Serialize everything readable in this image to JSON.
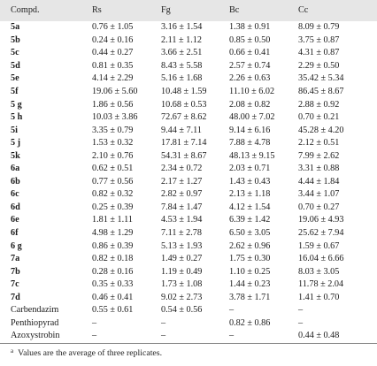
{
  "table": {
    "headers": [
      "Compd.",
      "Rs",
      "Fg",
      "Bc",
      "Cc"
    ],
    "rows": [
      {
        "compound": "5a",
        "bold": true,
        "values": [
          "0.76 ± 1.05",
          "3.16 ± 1.54",
          "1.38 ± 0.91",
          "8.09 ± 0.79"
        ]
      },
      {
        "compound": "5b",
        "bold": true,
        "values": [
          "0.24 ± 0.16",
          "2.11 ± 1.12",
          "0.85 ± 0.50",
          "3.75 ± 0.87"
        ]
      },
      {
        "compound": "5c",
        "bold": true,
        "values": [
          "0.44 ± 0.27",
          "3.66 ± 2.51",
          "0.66 ± 0.41",
          "4.31 ± 0.87"
        ]
      },
      {
        "compound": "5d",
        "bold": true,
        "values": [
          "0.81 ± 0.35",
          "8.43 ± 5.58",
          "2.57 ± 0.74",
          "2.29 ± 0.50"
        ]
      },
      {
        "compound": "5e",
        "bold": true,
        "values": [
          "4.14 ± 2.29",
          "5.16 ± 1.68",
          "2.26 ± 0.63",
          "35.42 ± 5.34"
        ]
      },
      {
        "compound": "5f",
        "bold": true,
        "values": [
          "19.06 ± 5.60",
          "10.48 ± 1.59",
          "11.10 ± 6.02",
          "86.45 ± 8.67"
        ]
      },
      {
        "compound": "5 g",
        "bold": true,
        "values": [
          "1.86 ± 0.56",
          "10.68 ± 0.53",
          "2.08 ± 0.82",
          "2.88 ± 0.92"
        ]
      },
      {
        "compound": "5 h",
        "bold": true,
        "values": [
          "10.03 ± 3.86",
          "72.67 ± 8.62",
          "48.00 ± 7.02",
          "0.70 ± 0.21"
        ]
      },
      {
        "compound": "5i",
        "bold": true,
        "values": [
          "3.35 ± 0.79",
          "9.44 ± 7.11",
          "9.14 ± 6.16",
          "45.28 ± 4.20"
        ]
      },
      {
        "compound": "5 j",
        "bold": true,
        "values": [
          "1.53 ± 0.32",
          "17.81 ± 7.14",
          "7.88 ± 4.78",
          "2.12 ± 0.51"
        ]
      },
      {
        "compound": "5k",
        "bold": true,
        "values": [
          "2.10 ± 0.76",
          "54.31 ± 8.67",
          "48.13 ± 9.15",
          "7.99 ± 2.62"
        ]
      },
      {
        "compound": "6a",
        "bold": true,
        "values": [
          "0.62 ± 0.51",
          "2.34 ± 0.72",
          "2.03 ± 0.71",
          "3.31 ± 0.88"
        ]
      },
      {
        "compound": "6b",
        "bold": true,
        "values": [
          "0.77 ± 0.56",
          "2.17 ± 1.27",
          "1.43 ± 0.43",
          "4.44 ± 1.84"
        ]
      },
      {
        "compound": "6c",
        "bold": true,
        "values": [
          "0.82 ± 0.32",
          "2.82 ± 0.97",
          "2.13 ± 1.18",
          "3.44 ± 1.07"
        ]
      },
      {
        "compound": "6d",
        "bold": true,
        "values": [
          "0.25 ± 0.39",
          "7.84 ± 1.47",
          "4.12 ± 1.54",
          "0.70 ± 0.27"
        ]
      },
      {
        "compound": "6e",
        "bold": true,
        "values": [
          "1.81 ± 1.11",
          "4.53 ± 1.94",
          "6.39 ± 1.42",
          "19.06 ± 4.93"
        ]
      },
      {
        "compound": "6f",
        "bold": true,
        "values": [
          "4.98 ± 1.29",
          "7.11 ± 2.78",
          "6.50 ± 3.05",
          "25.62 ± 7.94"
        ]
      },
      {
        "compound": "6 g",
        "bold": true,
        "values": [
          "0.86 ± 0.39",
          "5.13 ± 1.93",
          "2.62 ± 0.96",
          "1.59 ± 0.67"
        ]
      },
      {
        "compound": "7a",
        "bold": true,
        "values": [
          "0.82 ± 0.18",
          "1.49 ± 0.27",
          "1.75 ± 0.30",
          "16.04 ± 6.66"
        ]
      },
      {
        "compound": "7b",
        "bold": true,
        "values": [
          "0.28 ± 0.16",
          "1.19 ± 0.49",
          "1.10 ± 0.25",
          "8.03 ± 3.05"
        ]
      },
      {
        "compound": "7c",
        "bold": true,
        "values": [
          "0.35 ± 0.33",
          "1.73 ± 1.08",
          "1.44 ± 0.23",
          "11.78 ± 2.04"
        ]
      },
      {
        "compound": "7d",
        "bold": true,
        "values": [
          "0.46 ± 0.41",
          "9.02 ± 2.73",
          "3.78 ± 1.71",
          "1.41 ± 0.70"
        ]
      },
      {
        "compound": "Carbendazim",
        "bold": false,
        "values": [
          "0.55 ± 0.61",
          "0.54 ± 0.56",
          "–",
          "–"
        ]
      },
      {
        "compound": "Penthiopyrad",
        "bold": false,
        "values": [
          "–",
          "–",
          "0.82 ± 0.86",
          "–"
        ]
      },
      {
        "compound": "Azoxystrobin",
        "bold": false,
        "values": [
          "–",
          "–",
          "–",
          "0.44 ± 0.48"
        ]
      }
    ]
  },
  "footnote": {
    "marker": "a",
    "text": "Values are the average of three replicates."
  },
  "colors": {
    "header_background": "#e6e6e6",
    "text": "#1a1a1a",
    "rule": "#888888"
  }
}
